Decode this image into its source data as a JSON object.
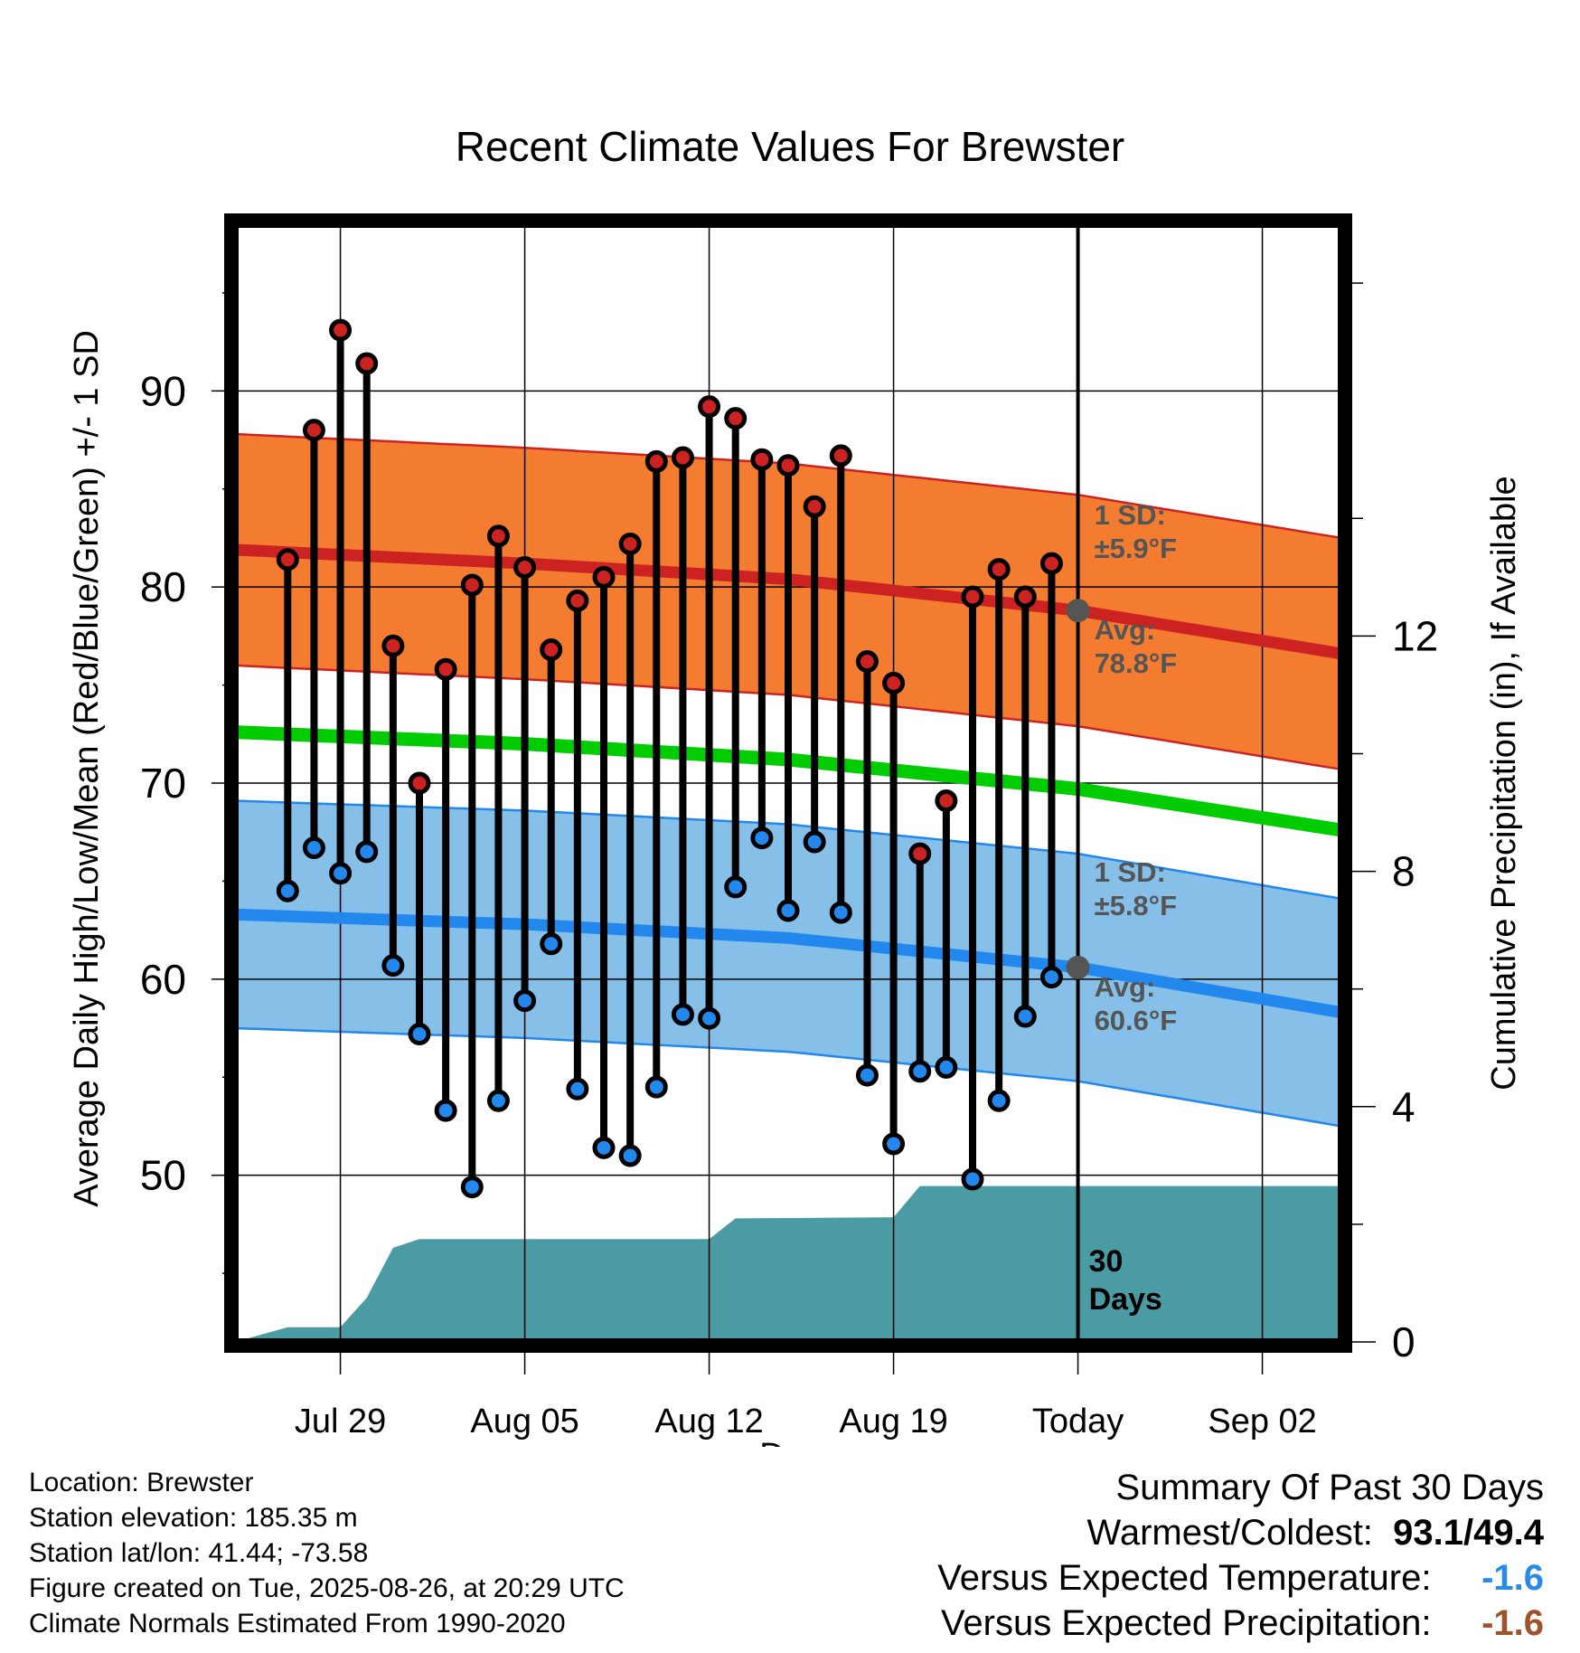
{
  "chart_data": {
    "type": "line",
    "title": "Recent Climate Values For Brewster",
    "xlabel": "Day",
    "ylabel": "Average Daily High/Low/Mean (Red/Blue/Green) +/- 1 SD",
    "y2label": "Cumulative Precipitation (in), If Available",
    "ylim": [
      41.5,
      98.5
    ],
    "y2lim": [
      0,
      19
    ],
    "yticks": [
      50,
      60,
      70,
      80,
      90
    ],
    "y2ticks": [
      0,
      4,
      8,
      12
    ],
    "xlim": [
      "2025-07-25",
      "2025-09-05"
    ],
    "xticks": [
      {
        "date": "2025-07-29",
        "label": "Jul 29"
      },
      {
        "date": "2025-08-05",
        "label": "Aug 05"
      },
      {
        "date": "2025-08-12",
        "label": "Aug 12"
      },
      {
        "date": "2025-08-19",
        "label": "Aug 19"
      },
      {
        "date": "2025-08-26",
        "label": "Today"
      },
      {
        "date": "2025-09-02",
        "label": "Sep 02"
      }
    ],
    "grid": true,
    "today": "2025-08-26",
    "dates": [
      "2025-07-27",
      "2025-07-28",
      "2025-07-29",
      "2025-07-30",
      "2025-07-31",
      "2025-08-01",
      "2025-08-02",
      "2025-08-03",
      "2025-08-04",
      "2025-08-05",
      "2025-08-06",
      "2025-08-07",
      "2025-08-08",
      "2025-08-09",
      "2025-08-10",
      "2025-08-11",
      "2025-08-12",
      "2025-08-13",
      "2025-08-14",
      "2025-08-15",
      "2025-08-16",
      "2025-08-17",
      "2025-08-18",
      "2025-08-19",
      "2025-08-20",
      "2025-08-21",
      "2025-08-22",
      "2025-08-23",
      "2025-08-24",
      "2025-08-25"
    ],
    "series": [
      {
        "name": "Daily High",
        "color": "#cc2222",
        "values": [
          81.4,
          88.0,
          93.1,
          91.4,
          77.0,
          70.0,
          75.8,
          80.1,
          82.6,
          81.0,
          76.8,
          79.3,
          80.5,
          82.2,
          86.4,
          86.6,
          89.2,
          88.6,
          86.5,
          86.2,
          84.1,
          86.7,
          76.2,
          75.1,
          66.4,
          69.1,
          79.5,
          80.9,
          79.5,
          81.2
        ]
      },
      {
        "name": "Daily Low",
        "color": "#2288ee",
        "values": [
          64.5,
          66.7,
          65.4,
          66.5,
          60.7,
          57.2,
          53.3,
          49.4,
          53.8,
          58.9,
          61.8,
          54.4,
          51.4,
          51.0,
          54.5,
          58.2,
          58.0,
          64.7,
          67.2,
          63.5,
          67.0,
          63.4,
          55.1,
          51.6,
          55.3,
          55.5,
          49.8,
          53.8,
          58.1,
          60.1
        ]
      },
      {
        "name": "Normal High",
        "color": "#cc2222",
        "x": [
          "2025-07-25",
          "2025-08-05",
          "2025-08-15",
          "2025-08-26",
          "2025-09-05"
        ],
        "values": [
          81.9,
          81.2,
          80.4,
          78.8,
          76.6
        ],
        "sd": 5.9
      },
      {
        "name": "Normal Mean",
        "color": "#00cc00",
        "x": [
          "2025-07-25",
          "2025-08-05",
          "2025-08-15",
          "2025-08-26",
          "2025-09-05"
        ],
        "values": [
          72.6,
          72.0,
          71.2,
          69.7,
          67.6
        ]
      },
      {
        "name": "Normal Low",
        "color": "#2288ee",
        "x": [
          "2025-07-25",
          "2025-08-05",
          "2025-08-15",
          "2025-08-26",
          "2025-09-05"
        ],
        "values": [
          63.3,
          62.8,
          62.1,
          60.6,
          58.3
        ],
        "sd": 5.8
      },
      {
        "name": "Cumulative Precipitation",
        "color": "#4a9ba3",
        "axis": "y2",
        "x": [
          "2025-07-25",
          "2025-07-27",
          "2025-07-29",
          "2025-07-30",
          "2025-07-31",
          "2025-08-01",
          "2025-08-12",
          "2025-08-13",
          "2025-08-19",
          "2025-08-20",
          "2025-09-05"
        ],
        "values": [
          0.0,
          0.25,
          0.25,
          0.75,
          1.6,
          1.75,
          1.75,
          2.1,
          2.12,
          2.65,
          2.65
        ]
      }
    ],
    "annotations": {
      "high_sd": {
        "line1": "1 SD:",
        "line2": "±5.9°F"
      },
      "high_avg": {
        "line1": "Avg:",
        "line2": "78.8°F"
      },
      "low_sd": {
        "line1": "1 SD:",
        "line2": "±5.8°F"
      },
      "low_avg": {
        "line1": "Avg:",
        "line2": "60.6°F"
      },
      "days": {
        "line1": "30",
        "line2": "Days"
      }
    }
  },
  "info": {
    "location": "Location: Brewster",
    "elevation": "Station elevation: 185.35 m",
    "latlon": "Station lat/lon: 41.44; -73.58",
    "created": "Figure created on Tue, 2025-08-26, at 20:29 UTC",
    "normals": "Climate Normals Estimated From 1990-2020"
  },
  "summary": {
    "title": "Summary Of Past 30 Days",
    "warm_cold_label": "Warmest/Coldest:",
    "warm_value": "93.1",
    "slash": "/",
    "cold_value": "49.4",
    "temp_label": "Versus Expected Temperature:",
    "temp_value": "-1.6",
    "temp_color": "#2b8ae6",
    "precip_label": "Versus Expected Precipitation:",
    "precip_value": "-1.6",
    "precip_color": "#a0522d"
  }
}
